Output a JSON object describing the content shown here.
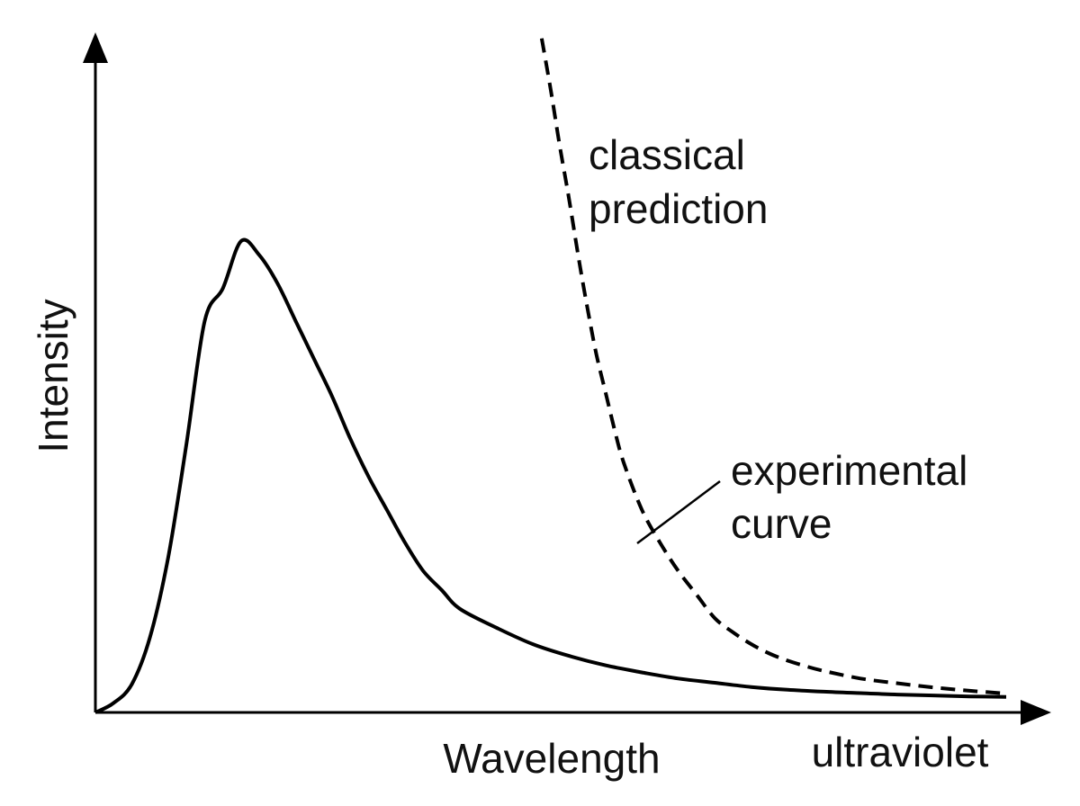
{
  "chart_data": {
    "type": "line",
    "xlabel": "Wavelength",
    "ylabel": "Intensity",
    "series": [
      {
        "name": "experimental curve",
        "style": "solid",
        "color": "#000000",
        "x": [
          0,
          2,
          4,
          6,
          8,
          10,
          12,
          14,
          16,
          18,
          20,
          22,
          24,
          26,
          28,
          30,
          32,
          34,
          36,
          38,
          40,
          44,
          48,
          52,
          56,
          60,
          64,
          68,
          72,
          76,
          80,
          84,
          88,
          92,
          96,
          100
        ],
        "y": [
          0,
          2,
          6,
          16,
          33,
          57,
          83,
          90,
          100,
          97,
          91,
          83,
          75,
          67,
          58,
          50,
          43,
          36,
          30,
          26,
          22,
          18,
          14.5,
          12,
          10,
          8.5,
          7.2,
          6.3,
          5.4,
          4.8,
          4.4,
          4.1,
          3.8,
          3.6,
          3.4,
          3.3
        ]
      },
      {
        "name": "classical prediction",
        "style": "dashed",
        "color": "#000000",
        "x": [
          49,
          50,
          51,
          52,
          53,
          54,
          55,
          56,
          57,
          58,
          60,
          62,
          64,
          66,
          68,
          70,
          72,
          74,
          76,
          78,
          80,
          84,
          88,
          92,
          96,
          100
        ],
        "y": [
          143,
          132,
          120,
          109,
          97,
          86,
          76,
          68,
          60,
          53,
          43,
          36,
          30,
          25,
          20,
          17,
          14.5,
          12.5,
          11,
          9.8,
          8.8,
          7.2,
          6.2,
          5.3,
          4.6,
          4.0
        ]
      }
    ],
    "annotations": [
      {
        "text_lines": [
          "classical",
          "prediction"
        ],
        "series": "classical prediction"
      },
      {
        "text_lines": [
          "experimental",
          "curve"
        ],
        "series": "experimental curve",
        "leader_line": true
      },
      {
        "text": "ultraviolet",
        "position": "right end of x-axis"
      }
    ],
    "xlim": [
      0,
      100
    ],
    "ylim": [
      0,
      150
    ],
    "x_ticks": [],
    "y_ticks": [],
    "grid": false,
    "legend": "none",
    "axis_arrows": true
  }
}
